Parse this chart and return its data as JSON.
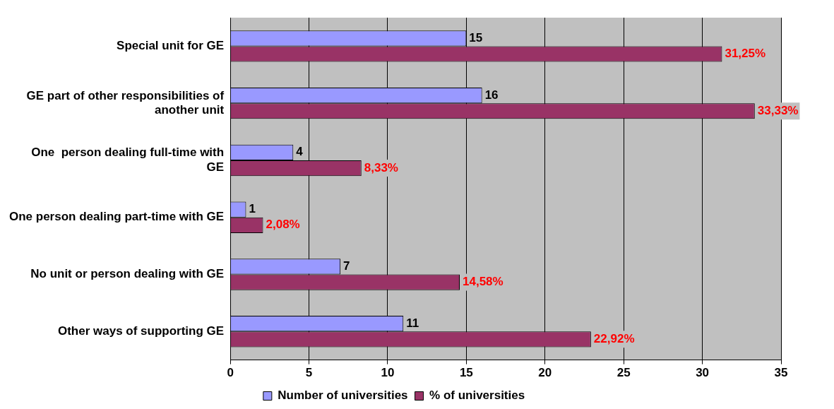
{
  "chart_data": {
    "type": "bar",
    "orientation": "horizontal",
    "categories": [
      "Special unit for GE",
      "GE part of other responsibilities of another unit",
      "One  person dealing full-time with GE",
      "One person dealing part-time with GE",
      "No unit or person dealing with GE",
      "Other ways of supporting GE"
    ],
    "series": [
      {
        "name": "Number of universities",
        "color": "#9999ff",
        "values": [
          15,
          16,
          4,
          1,
          7,
          11
        ],
        "value_labels": [
          "15",
          "16",
          "4",
          "1",
          "7",
          "11"
        ]
      },
      {
        "name": "% of universities",
        "color": "#993366",
        "values": [
          31.25,
          33.33,
          8.33,
          2.08,
          14.58,
          22.92
        ],
        "value_labels": [
          "31,25%",
          "33,33%",
          "8,33%",
          "2,08%",
          "14,58%",
          "22,92%"
        ]
      }
    ],
    "xlim": [
      0,
      35
    ],
    "xticks": [
      0,
      5,
      10,
      15,
      20,
      25,
      30,
      35
    ],
    "grid": "x",
    "legend": "bottom"
  }
}
